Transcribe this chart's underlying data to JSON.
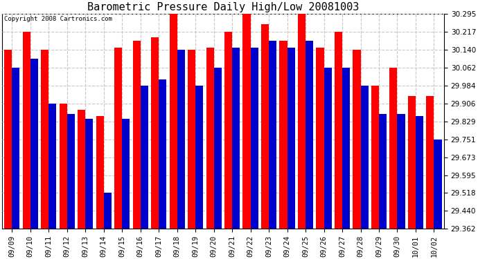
{
  "title": "Barometric Pressure Daily High/Low 20081003",
  "copyright": "Copyright 2008 Cartronics.com",
  "categories": [
    "09/09",
    "09/10",
    "09/11",
    "09/12",
    "09/13",
    "09/14",
    "09/15",
    "09/16",
    "09/17",
    "09/18",
    "09/19",
    "09/20",
    "09/21",
    "09/22",
    "09/23",
    "09/24",
    "09/25",
    "09/26",
    "09/27",
    "09/28",
    "09/29",
    "09/30",
    "10/01",
    "10/02"
  ],
  "highs": [
    30.14,
    30.217,
    30.14,
    29.906,
    29.88,
    29.851,
    30.15,
    30.18,
    30.195,
    30.295,
    30.14,
    30.15,
    30.217,
    30.295,
    30.25,
    30.18,
    30.295,
    30.15,
    30.217,
    30.14,
    29.984,
    30.062,
    29.94,
    29.94
  ],
  "lows": [
    30.062,
    30.1,
    29.906,
    29.862,
    29.84,
    29.518,
    29.84,
    29.984,
    30.01,
    30.14,
    29.984,
    30.062,
    30.15,
    30.15,
    30.18,
    30.15,
    30.18,
    30.062,
    30.062,
    29.984,
    29.862,
    29.862,
    29.851,
    29.751
  ],
  "bar_color_high": "#ff0000",
  "bar_color_low": "#0000cc",
  "ylim_min": 29.362,
  "ylim_max": 30.295,
  "yticks": [
    29.362,
    29.44,
    29.518,
    29.595,
    29.673,
    29.751,
    29.829,
    29.906,
    29.984,
    30.062,
    30.14,
    30.217,
    30.295
  ],
  "bg_color": "#ffffff",
  "plot_bg_color": "#ffffff",
  "grid_color": "#c8c8c8",
  "title_fontsize": 11,
  "tick_fontsize": 7.5,
  "copyright_fontsize": 6.5
}
